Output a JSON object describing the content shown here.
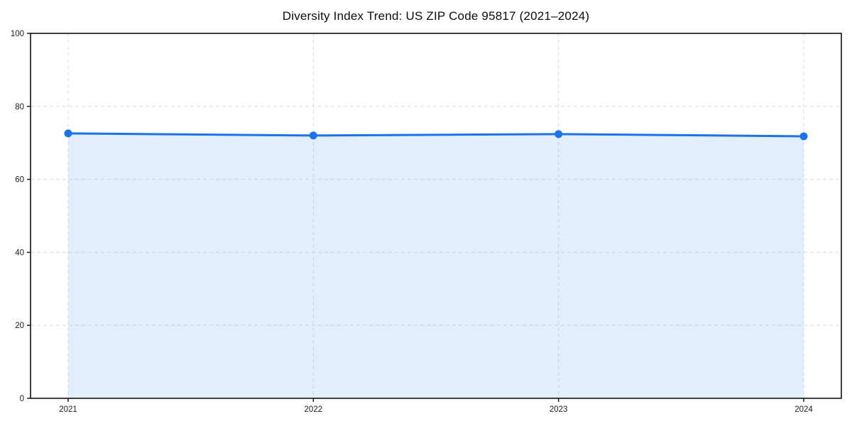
{
  "chart_data": {
    "type": "line",
    "title": "Diversity Index Trend: US ZIP Code 95817 (2021–2024)",
    "categories": [
      "2021",
      "2022",
      "2023",
      "2024"
    ],
    "series": [
      {
        "name": "Diversity Index",
        "values": [
          72.6,
          72.0,
          72.4,
          71.8
        ]
      }
    ],
    "xlabel": "",
    "ylabel": "",
    "ylim": [
      0,
      100
    ],
    "yticks": [
      0,
      20,
      40,
      60,
      80,
      100
    ],
    "grid": true,
    "grid_style": "dashed",
    "legend": false,
    "area_fill": true,
    "markers": true,
    "colors": {
      "line": "#1a73e8",
      "marker": "#1a73e8",
      "fill": "#1a73e8",
      "fill_opacity": 0.12,
      "grid": "#dcdcdc",
      "axis": "#111111",
      "tick_label": "#1b1b1b",
      "title": "#0d0d0d",
      "background": "#ffffff"
    }
  }
}
